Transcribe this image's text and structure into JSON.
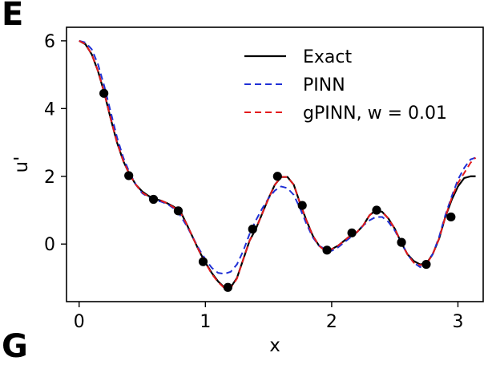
{
  "panel_labels": {
    "top": "E",
    "bottom": "G"
  },
  "colors": {
    "exact": "#000000",
    "pinn": "#1f2fd6",
    "gpinn": "#e41a1c",
    "points": "#000000"
  },
  "chart_data": {
    "type": "line",
    "xlabel": "x",
    "ylabel": "u'",
    "xlim": [
      -0.1,
      3.2
    ],
    "ylim": [
      -1.7,
      6.4
    ],
    "xticks": [
      0,
      1,
      2,
      3
    ],
    "yticks": [
      0,
      2,
      4,
      6
    ],
    "grid": false,
    "legend_position": "top-right",
    "series": [
      {
        "name": "Exact",
        "style": "solid",
        "color": "#000000",
        "x": [
          0.0,
          0.05,
          0.1,
          0.15,
          0.2,
          0.25,
          0.3,
          0.35,
          0.4,
          0.45,
          0.5,
          0.55,
          0.6,
          0.65,
          0.7,
          0.75,
          0.8,
          0.85,
          0.9,
          0.95,
          1.0,
          1.05,
          1.1,
          1.15,
          1.2,
          1.25,
          1.3,
          1.35,
          1.4,
          1.45,
          1.5,
          1.55,
          1.6,
          1.65,
          1.7,
          1.75,
          1.8,
          1.85,
          1.9,
          1.95,
          2.0,
          2.05,
          2.1,
          2.15,
          2.2,
          2.25,
          2.3,
          2.35,
          2.4,
          2.45,
          2.5,
          2.55,
          2.6,
          2.65,
          2.7,
          2.75,
          2.8,
          2.85,
          2.9,
          2.95,
          3.0,
          3.05,
          3.1,
          3.14
        ],
        "y": [
          6.0,
          5.9,
          5.6,
          5.1,
          4.45,
          3.7,
          3.0,
          2.45,
          2.05,
          1.75,
          1.55,
          1.42,
          1.33,
          1.28,
          1.2,
          1.1,
          0.98,
          0.6,
          0.2,
          -0.2,
          -0.55,
          -0.85,
          -1.1,
          -1.28,
          -1.28,
          -1.0,
          -0.45,
          0.1,
          0.45,
          0.9,
          1.35,
          1.75,
          1.98,
          1.98,
          1.75,
          1.2,
          0.7,
          0.25,
          -0.05,
          -0.2,
          -0.15,
          -0.05,
          0.1,
          0.25,
          0.35,
          0.55,
          0.85,
          1.0,
          0.95,
          0.75,
          0.45,
          0.05,
          -0.3,
          -0.5,
          -0.6,
          -0.58,
          -0.3,
          0.15,
          0.8,
          1.3,
          1.7,
          1.95,
          2.0,
          2.0
        ]
      },
      {
        "name": "PINN",
        "style": "dashed",
        "color": "#1f2fd6",
        "x": [
          0.0,
          0.05,
          0.1,
          0.15,
          0.2,
          0.25,
          0.3,
          0.35,
          0.4,
          0.45,
          0.5,
          0.55,
          0.6,
          0.65,
          0.7,
          0.75,
          0.8,
          0.85,
          0.9,
          0.95,
          1.0,
          1.05,
          1.1,
          1.15,
          1.2,
          1.25,
          1.3,
          1.35,
          1.4,
          1.45,
          1.5,
          1.55,
          1.6,
          1.65,
          1.7,
          1.75,
          1.8,
          1.85,
          1.9,
          1.95,
          2.0,
          2.05,
          2.1,
          2.15,
          2.2,
          2.25,
          2.3,
          2.35,
          2.4,
          2.45,
          2.5,
          2.55,
          2.6,
          2.65,
          2.7,
          2.75,
          2.8,
          2.85,
          2.9,
          2.95,
          3.0,
          3.05,
          3.1,
          3.14
        ],
        "y": [
          6.0,
          5.95,
          5.75,
          5.3,
          4.65,
          3.9,
          3.15,
          2.55,
          2.1,
          1.75,
          1.5,
          1.38,
          1.3,
          1.25,
          1.18,
          1.05,
          0.85,
          0.55,
          0.2,
          -0.15,
          -0.45,
          -0.7,
          -0.85,
          -0.88,
          -0.82,
          -0.6,
          -0.2,
          0.3,
          0.7,
          1.05,
          1.35,
          1.58,
          1.7,
          1.65,
          1.45,
          1.05,
          0.6,
          0.2,
          -0.05,
          -0.15,
          -0.2,
          -0.1,
          0.05,
          0.2,
          0.35,
          0.55,
          0.7,
          0.8,
          0.8,
          0.65,
          0.4,
          0.05,
          -0.3,
          -0.55,
          -0.68,
          -0.6,
          -0.3,
          0.2,
          0.85,
          1.4,
          1.9,
          2.25,
          2.5,
          2.55
        ]
      },
      {
        "name": "gPINN, w = 0.01",
        "style": "dashed",
        "color": "#e41a1c",
        "x": [
          0.0,
          0.05,
          0.1,
          0.15,
          0.2,
          0.25,
          0.3,
          0.35,
          0.4,
          0.45,
          0.5,
          0.55,
          0.6,
          0.65,
          0.7,
          0.75,
          0.8,
          0.85,
          0.9,
          0.95,
          1.0,
          1.05,
          1.1,
          1.15,
          1.2,
          1.25,
          1.3,
          1.35,
          1.4,
          1.45,
          1.5,
          1.55,
          1.6,
          1.65,
          1.7,
          1.75,
          1.8,
          1.85,
          1.9,
          1.95,
          2.0,
          2.05,
          2.1,
          2.15,
          2.2,
          2.25,
          2.3,
          2.35,
          2.4,
          2.45,
          2.5,
          2.55,
          2.6,
          2.65,
          2.7,
          2.75,
          2.8,
          2.85,
          2.9,
          2.95,
          3.0,
          3.05,
          3.1,
          3.14
        ],
        "y": [
          6.0,
          5.9,
          5.6,
          5.1,
          4.45,
          3.7,
          3.0,
          2.45,
          2.05,
          1.75,
          1.52,
          1.4,
          1.32,
          1.28,
          1.2,
          1.08,
          0.95,
          0.6,
          0.2,
          -0.2,
          -0.55,
          -0.88,
          -1.12,
          -1.3,
          -1.3,
          -1.02,
          -0.45,
          0.1,
          0.45,
          0.9,
          1.35,
          1.75,
          1.98,
          1.98,
          1.75,
          1.2,
          0.7,
          0.25,
          -0.05,
          -0.2,
          -0.15,
          -0.05,
          0.1,
          0.25,
          0.35,
          0.55,
          0.85,
          1.0,
          0.95,
          0.75,
          0.45,
          0.05,
          -0.3,
          -0.55,
          -0.62,
          -0.6,
          -0.3,
          0.15,
          0.8,
          1.35,
          1.8,
          2.1,
          2.4,
          2.55
        ]
      }
    ],
    "training_points": {
      "color": "#000000",
      "x": [
        0.196,
        0.393,
        0.589,
        0.785,
        0.982,
        1.178,
        1.374,
        1.571,
        1.767,
        1.963,
        2.16,
        2.356,
        2.553,
        2.749,
        2.945
      ],
      "y": [
        4.45,
        2.02,
        1.32,
        0.98,
        -0.52,
        -1.28,
        0.44,
        2.0,
        1.14,
        -0.18,
        0.33,
        1.0,
        0.05,
        -0.6,
        0.8
      ]
    }
  }
}
